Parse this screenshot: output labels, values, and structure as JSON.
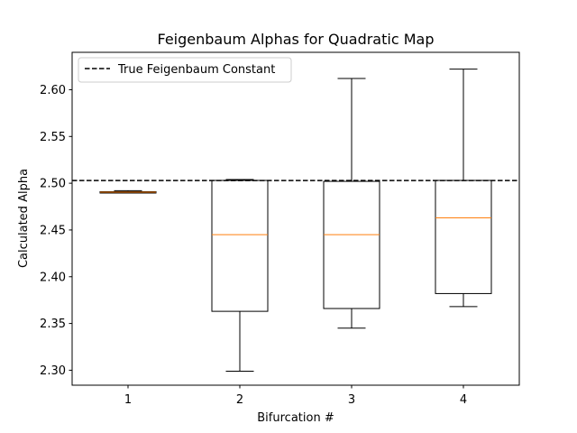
{
  "chart_data": {
    "type": "box",
    "title": "Feigenbaum Alphas for Quadratic Map",
    "xlabel": "Bifurcation #",
    "ylabel": "Calculated Alpha",
    "ylim": [
      2.284,
      2.64
    ],
    "xlim": [
      0.5,
      4.5
    ],
    "yticks": [
      2.3,
      2.35,
      2.4,
      2.45,
      2.5,
      2.55,
      2.6
    ],
    "ytick_labels": [
      "2.30",
      "2.35",
      "2.40",
      "2.45",
      "2.50",
      "2.55",
      "2.60"
    ],
    "categories": [
      "1",
      "2",
      "3",
      "4"
    ],
    "boxes": [
      {
        "whislo": 2.4895,
        "q1": 2.4895,
        "med": 2.4905,
        "q3": 2.491,
        "whishi": 2.492
      },
      {
        "whislo": 2.299,
        "q1": 2.363,
        "med": 2.445,
        "q3": 2.503,
        "whishi": 2.504
      },
      {
        "whislo": 2.345,
        "q1": 2.366,
        "med": 2.445,
        "q3": 2.502,
        "whishi": 2.612
      },
      {
        "whislo": 2.368,
        "q1": 2.382,
        "med": 2.463,
        "q3": 2.503,
        "whishi": 2.622
      }
    ],
    "reference_line": {
      "value": 2.5029,
      "label": "True Feigenbaum Constant",
      "style": "dashed",
      "color": "#000000"
    },
    "legend": {
      "placement": "upper-left",
      "entries": [
        "True Feigenbaum Constant"
      ]
    },
    "grid": false,
    "colors": {
      "box": "#000000",
      "median": "#ff7f0e"
    }
  }
}
